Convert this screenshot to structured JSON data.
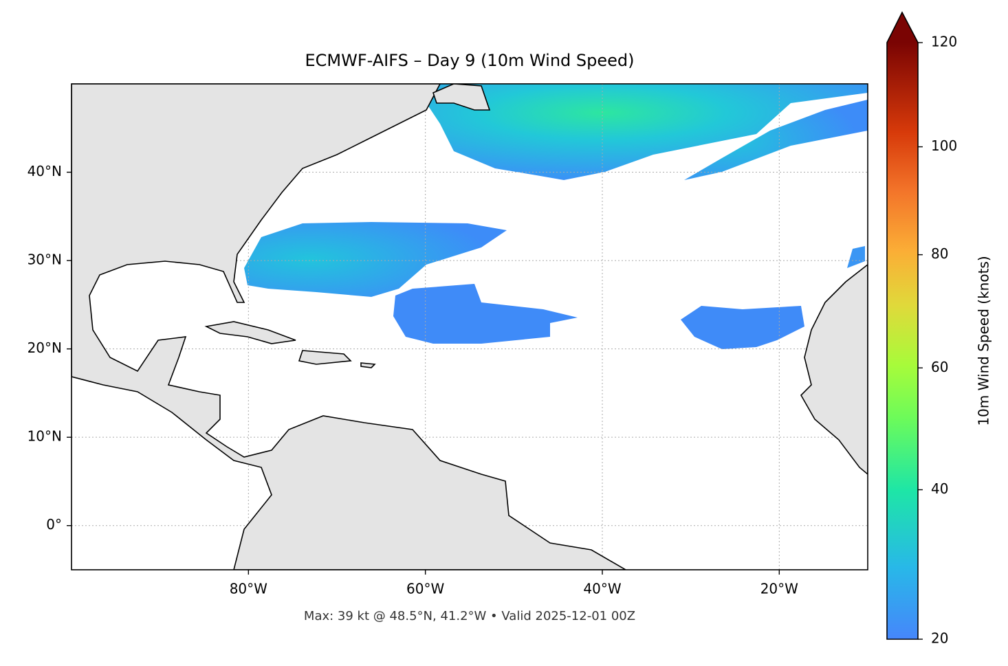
{
  "title": "ECMWF-AIFS – Day 9 (10m Wind Speed)",
  "footer": "Max: 39 kt @ 48.5°N, 41.2°W • Valid 2025-12-01 00Z",
  "map": {
    "xlim": [
      -100,
      -10
    ],
    "ylim": [
      -5,
      50
    ],
    "grid": true,
    "xticks": [
      {
        "value": -80,
        "label": "80°W"
      },
      {
        "value": -60,
        "label": "60°W"
      },
      {
        "value": -40,
        "label": "40°W"
      },
      {
        "value": -20,
        "label": "20°W"
      }
    ],
    "yticks": [
      {
        "value": 0,
        "label": "0°"
      },
      {
        "value": 10,
        "label": "10°N"
      },
      {
        "value": 20,
        "label": "20°N"
      },
      {
        "value": 30,
        "label": "30°N"
      },
      {
        "value": 40,
        "label": "40°N"
      }
    ]
  },
  "colorbar": {
    "label": "10m Wind Speed (knots)",
    "lim": [
      20,
      120
    ],
    "ticks": [
      20,
      40,
      60,
      80,
      100,
      120
    ],
    "scale": "power",
    "extend": "max"
  }
}
